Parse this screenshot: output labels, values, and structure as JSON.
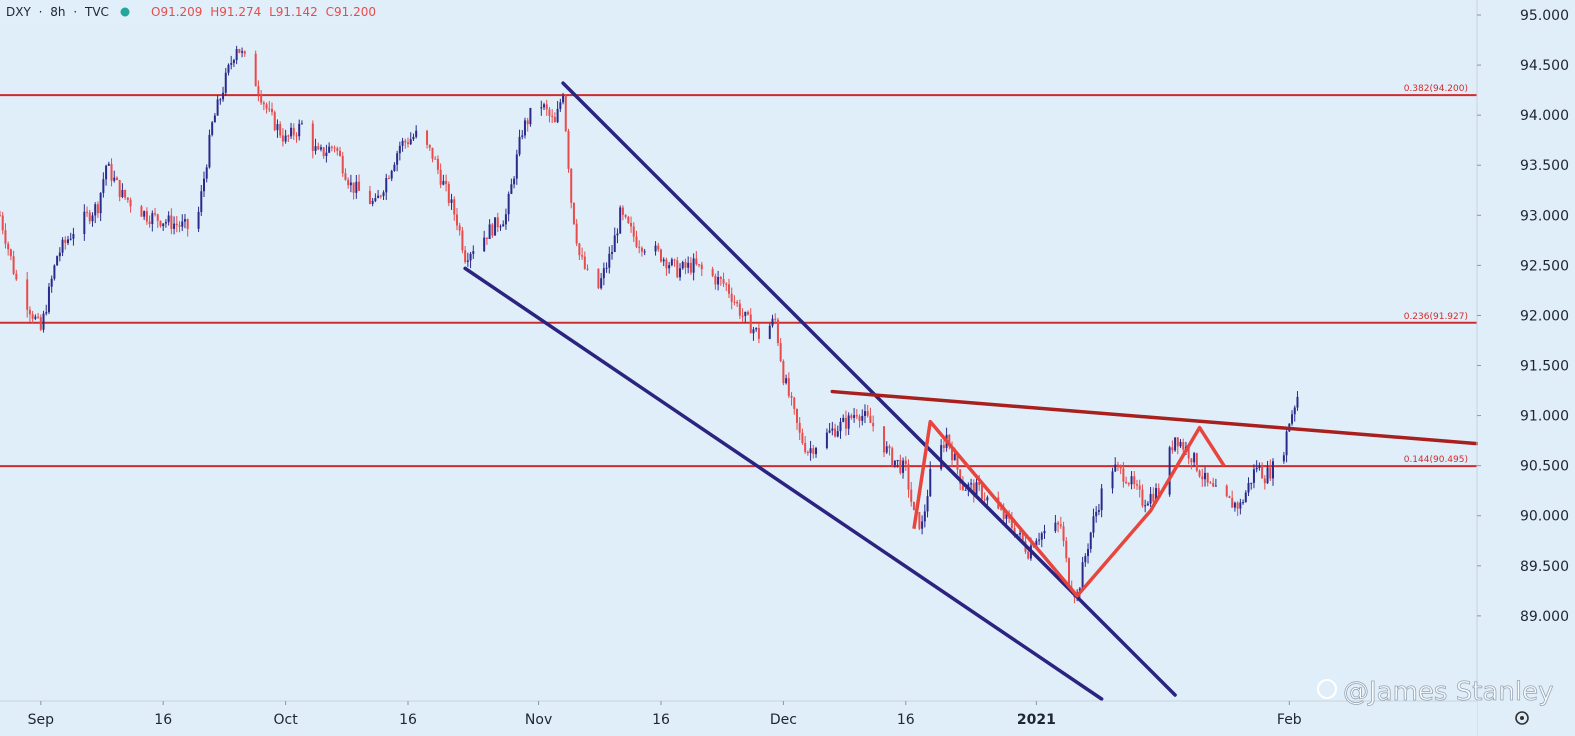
{
  "header": {
    "symbol": "DXY",
    "interval": "8h",
    "source": "TVC",
    "open": "O91.209",
    "high": "H91.274",
    "low": "L91.142",
    "close": "C91.200"
  },
  "watermark": "@James Stanley",
  "settings_icon": "gear-icon",
  "colors": {
    "background": "#e0eef9",
    "up": "#2a2a8c",
    "down": "#e74c4c",
    "fib_line": "#d12c2c",
    "channel": "#2a2380",
    "pattern": "#e8453c",
    "trendline": "#a8201e"
  },
  "chart_data": {
    "type": "candlestick",
    "title": "",
    "xlabel": "",
    "ylabel": "",
    "ylim": [
      88.15,
      95.15
    ],
    "y_ticks": [
      "95.000",
      "94.500",
      "94.000",
      "93.500",
      "93.000",
      "92.500",
      "92.000",
      "91.500",
      "91.000",
      "90.500",
      "90.000",
      "89.500",
      "89.000"
    ],
    "x_ticks": [
      {
        "label": "Sep",
        "date": "2020-09-01"
      },
      {
        "label": "16",
        "date": "2020-09-16"
      },
      {
        "label": "Oct",
        "date": "2020-10-01"
      },
      {
        "label": "16",
        "date": "2020-10-16"
      },
      {
        "label": "Nov",
        "date": "2020-11-01"
      },
      {
        "label": "16",
        "date": "2020-11-16"
      },
      {
        "label": "Dec",
        "date": "2020-12-01"
      },
      {
        "label": "16",
        "date": "2020-12-16"
      },
      {
        "label": "2021",
        "date": "2021-01-01"
      },
      {
        "label": "Feb",
        "date": "2021-02-01"
      }
    ],
    "x_range": [
      "2020-08-27",
      "2021-02-24"
    ],
    "grid": false,
    "price_path": [
      [
        "2020-08-27",
        93.0
      ],
      [
        "2020-08-29",
        92.35
      ],
      [
        "2020-09-01",
        91.85
      ],
      [
        "2020-09-03",
        92.6
      ],
      [
        "2020-09-05",
        92.85
      ],
      [
        "2020-09-08",
        93.1
      ],
      [
        "2020-09-09",
        93.5
      ],
      [
        "2020-09-11",
        93.2
      ],
      [
        "2020-09-14",
        93.0
      ],
      [
        "2020-09-16",
        92.95
      ],
      [
        "2020-09-18",
        92.9
      ],
      [
        "2020-09-20",
        92.85
      ],
      [
        "2020-09-22",
        93.9
      ],
      [
        "2020-09-24",
        94.45
      ],
      [
        "2020-09-25",
        94.7
      ],
      [
        "2020-09-27",
        94.4
      ],
      [
        "2020-09-29",
        94.0
      ],
      [
        "2020-10-01",
        93.75
      ],
      [
        "2020-10-03",
        93.9
      ],
      [
        "2020-10-05",
        93.6
      ],
      [
        "2020-10-07",
        93.7
      ],
      [
        "2020-10-09",
        93.3
      ],
      [
        "2020-10-12",
        93.1
      ],
      [
        "2020-10-15",
        93.7
      ],
      [
        "2020-10-17",
        93.8
      ],
      [
        "2020-10-19",
        93.6
      ],
      [
        "2020-10-22",
        92.95
      ],
      [
        "2020-10-23",
        92.6
      ],
      [
        "2020-10-26",
        92.85
      ],
      [
        "2020-10-28",
        93.0
      ],
      [
        "2020-10-30",
        93.85
      ],
      [
        "2020-11-01",
        94.15
      ],
      [
        "2020-11-03",
        93.9
      ],
      [
        "2020-11-04",
        94.25
      ],
      [
        "2020-11-05",
        93.15
      ],
      [
        "2020-11-06",
        92.6
      ],
      [
        "2020-11-08",
        92.2
      ],
      [
        "2020-11-10",
        92.65
      ],
      [
        "2020-11-11",
        93.0
      ],
      [
        "2020-11-13",
        92.75
      ],
      [
        "2020-11-16",
        92.6
      ],
      [
        "2020-11-18",
        92.45
      ],
      [
        "2020-11-20",
        92.5
      ],
      [
        "2020-11-24",
        92.3
      ],
      [
        "2020-11-26",
        92.0
      ],
      [
        "2020-11-28",
        91.8
      ],
      [
        "2020-11-30",
        91.95
      ],
      [
        "2020-12-01",
        91.4
      ],
      [
        "2020-12-02",
        91.1
      ],
      [
        "2020-12-03",
        90.8
      ],
      [
        "2020-12-04",
        90.65
      ],
      [
        "2020-12-07",
        90.85
      ],
      [
        "2020-12-09",
        90.95
      ],
      [
        "2020-12-10",
        91.05
      ],
      [
        "2020-12-12",
        90.9
      ],
      [
        "2020-12-14",
        90.6
      ],
      [
        "2020-12-16",
        90.45
      ],
      [
        "2020-12-17",
        90.0
      ],
      [
        "2020-12-18",
        89.9
      ],
      [
        "2020-12-19",
        90.4
      ],
      [
        "2020-12-21",
        90.8
      ],
      [
        "2020-12-23",
        90.3
      ],
      [
        "2020-12-25",
        90.25
      ],
      [
        "2020-12-29",
        89.9
      ],
      [
        "2020-12-31",
        89.65
      ],
      [
        "2021-01-01",
        89.8
      ],
      [
        "2021-01-04",
        89.9
      ],
      [
        "2021-01-05",
        89.35
      ],
      [
        "2021-01-06",
        89.2
      ],
      [
        "2021-01-07",
        89.6
      ],
      [
        "2021-01-08",
        89.95
      ],
      [
        "2021-01-10",
        90.5
      ],
      [
        "2021-01-12",
        90.4
      ],
      [
        "2021-01-14",
        90.15
      ],
      [
        "2021-01-16",
        90.25
      ],
      [
        "2021-01-18",
        90.8
      ],
      [
        "2021-01-20",
        90.6
      ],
      [
        "2021-01-22",
        90.3
      ],
      [
        "2021-01-24",
        90.15
      ],
      [
        "2021-01-26",
        90.1
      ],
      [
        "2021-01-28",
        90.5
      ],
      [
        "2021-01-29",
        90.4
      ],
      [
        "2021-01-31",
        90.55
      ],
      [
        "2021-02-01",
        90.95
      ],
      [
        "2021-02-02",
        91.2
      ]
    ],
    "fib_levels": [
      {
        "label": "0.382(94.200)",
        "value": 94.2
      },
      {
        "label": "0.236(91.927)",
        "value": 91.927
      },
      {
        "label": "0.144(90.495)",
        "value": 90.495
      }
    ],
    "drawings": [
      {
        "kind": "channel-upper",
        "from": [
          "2020-11-04",
          94.32
        ],
        "to": [
          "2021-01-18",
          88.21
        ]
      },
      {
        "kind": "channel-lower",
        "from": [
          "2020-10-23",
          92.47
        ],
        "to": [
          "2021-01-09",
          88.17
        ]
      },
      {
        "kind": "resistance-trendline",
        "from": [
          "2020-12-07",
          91.24
        ],
        "to": [
          "2021-02-24",
          90.72
        ]
      },
      {
        "kind": "pattern",
        "points": [
          [
            "2020-12-17",
            89.87
          ],
          [
            "2020-12-19",
            90.94
          ],
          [
            "2021-01-06",
            89.2
          ],
          [
            "2021-01-15",
            90.05
          ],
          [
            "2021-01-21",
            90.88
          ],
          [
            "2021-01-24",
            90.5
          ]
        ]
      }
    ]
  }
}
